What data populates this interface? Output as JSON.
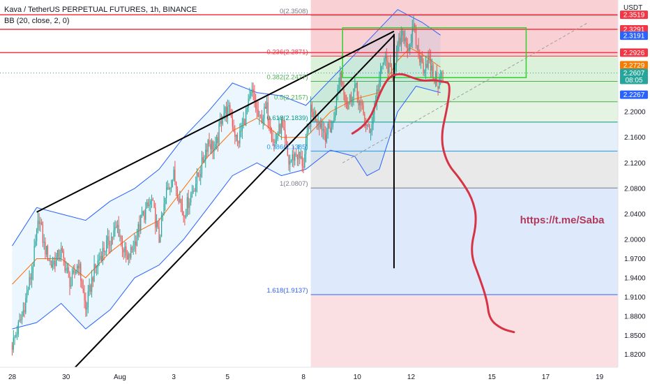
{
  "header": {
    "symbol_line": "Kava / TetherUS PERPETUAL FUTURES, 1h, BINANCE",
    "indicator_line": "BB (20, close, 2, 0)",
    "currency": "USDT"
  },
  "chart_data": {
    "type": "candlestick",
    "symbol": "Kava / TetherUS PERPETUAL FUTURES",
    "interval": "1h",
    "exchange": "BINANCE",
    "indicator": "BB (20, close, 2, 0)",
    "ylim": [
      1.8,
      2.375
    ],
    "y_ticks": [
      1.82,
      1.85,
      1.88,
      1.91,
      1.94,
      1.97,
      2.0,
      2.04,
      2.08,
      2.12,
      2.16,
      2.2
    ],
    "y_tick_labels": [
      "1.8200",
      "1.8500",
      "1.8800",
      "1.9100",
      "1.9400",
      "1.9700",
      "2.0000",
      "2.0400",
      "2.0800",
      "2.1200",
      "2.1600",
      "2.2000"
    ],
    "x_tick_labels": [
      "28",
      "30",
      "Aug",
      "3",
      "5",
      "8",
      "10",
      "12",
      "15",
      "17",
      "19"
    ],
    "x_ticks_bar": [
      0,
      44,
      88,
      132,
      176,
      238,
      282,
      326,
      392,
      436,
      480
    ],
    "bar_range": [
      -10,
      495
    ],
    "price_path": [
      [
        0,
        1.835
      ],
      [
        8,
        1.88
      ],
      [
        16,
        1.95
      ],
      [
        22,
        2.035
      ],
      [
        26,
        1.99
      ],
      [
        32,
        1.96
      ],
      [
        40,
        1.98
      ],
      [
        48,
        1.93
      ],
      [
        54,
        1.965
      ],
      [
        60,
        1.89
      ],
      [
        66,
        1.945
      ],
      [
        72,
        1.975
      ],
      [
        80,
        2.0
      ],
      [
        86,
        2.02
      ],
      [
        94,
        1.965
      ],
      [
        100,
        1.995
      ],
      [
        106,
        2.035
      ],
      [
        114,
        2.06
      ],
      [
        120,
        2.0
      ],
      [
        126,
        2.075
      ],
      [
        132,
        2.1
      ],
      [
        140,
        2.04
      ],
      [
        148,
        2.08
      ],
      [
        154,
        2.11
      ],
      [
        160,
        2.155
      ],
      [
        166,
        2.14
      ],
      [
        172,
        2.2
      ],
      [
        178,
        2.2
      ],
      [
        184,
        2.15
      ],
      [
        190,
        2.19
      ],
      [
        196,
        2.23
      ],
      [
        202,
        2.185
      ],
      [
        208,
        2.205
      ],
      [
        214,
        2.15
      ],
      [
        220,
        2.18
      ],
      [
        226,
        2.12
      ],
      [
        232,
        2.135
      ],
      [
        238,
        2.118
      ],
      [
        244,
        2.2
      ],
      [
        250,
        2.19
      ],
      [
        256,
        2.165
      ],
      [
        262,
        2.18
      ],
      [
        268,
        2.26
      ],
      [
        274,
        2.21
      ],
      [
        280,
        2.24
      ],
      [
        286,
        2.2
      ],
      [
        292,
        2.165
      ],
      [
        298,
        2.23
      ],
      [
        304,
        2.285
      ],
      [
        310,
        2.255
      ],
      [
        316,
        2.305
      ],
      [
        320,
        2.32
      ],
      [
        324,
        2.3
      ],
      [
        328,
        2.33
      ],
      [
        332,
        2.29
      ],
      [
        336,
        2.27
      ],
      [
        340,
        2.282
      ],
      [
        344,
        2.256
      ],
      [
        348,
        2.245
      ],
      [
        352,
        2.26
      ]
    ],
    "bb_upper": [
      [
        0,
        1.99
      ],
      [
        20,
        2.05
      ],
      [
        40,
        2.04
      ],
      [
        60,
        2.03
      ],
      [
        80,
        2.06
      ],
      [
        100,
        2.08
      ],
      [
        120,
        2.11
      ],
      [
        140,
        2.16
      ],
      [
        160,
        2.2
      ],
      [
        180,
        2.245
      ],
      [
        200,
        2.23
      ],
      [
        220,
        2.225
      ],
      [
        240,
        2.21
      ],
      [
        260,
        2.25
      ],
      [
        280,
        2.29
      ],
      [
        300,
        2.33
      ],
      [
        315,
        2.36
      ],
      [
        325,
        2.35
      ],
      [
        335,
        2.34
      ],
      [
        350,
        2.32
      ]
    ],
    "bb_basis": [
      [
        0,
        1.93
      ],
      [
        20,
        1.97
      ],
      [
        40,
        1.97
      ],
      [
        60,
        1.94
      ],
      [
        80,
        1.98
      ],
      [
        100,
        2.01
      ],
      [
        120,
        2.03
      ],
      [
        140,
        2.08
      ],
      [
        160,
        2.13
      ],
      [
        180,
        2.17
      ],
      [
        200,
        2.19
      ],
      [
        220,
        2.16
      ],
      [
        240,
        2.16
      ],
      [
        260,
        2.2
      ],
      [
        280,
        2.22
      ],
      [
        300,
        2.23
      ],
      [
        315,
        2.28
      ],
      [
        325,
        2.3
      ],
      [
        335,
        2.29
      ],
      [
        350,
        2.27
      ]
    ],
    "bb_lower": [
      [
        0,
        1.86
      ],
      [
        20,
        1.87
      ],
      [
        40,
        1.9
      ],
      [
        60,
        1.86
      ],
      [
        80,
        1.89
      ],
      [
        100,
        1.94
      ],
      [
        120,
        1.96
      ],
      [
        140,
        2.0
      ],
      [
        160,
        2.05
      ],
      [
        180,
        2.1
      ],
      [
        200,
        2.12
      ],
      [
        220,
        2.1
      ],
      [
        240,
        2.11
      ],
      [
        260,
        2.14
      ],
      [
        280,
        2.13
      ],
      [
        290,
        2.1
      ],
      [
        300,
        2.11
      ],
      [
        315,
        2.2
      ],
      [
        330,
        2.24
      ],
      [
        350,
        2.23
      ]
    ],
    "fib_levels": [
      {
        "ratio": "0",
        "value": 2.3508,
        "label": "0(2.3508)"
      },
      {
        "ratio": "0.236",
        "value": 2.2871,
        "label": "0.236(2.2871)"
      },
      {
        "ratio": "0.382",
        "value": 2.2477,
        "label": "0.382(2.2477)"
      },
      {
        "ratio": "0.5",
        "value": 2.2157,
        "label": "0.5(2.2157)"
      },
      {
        "ratio": "0.618",
        "value": 2.1839,
        "label": "0.618(2.1839)"
      },
      {
        "ratio": "0.786",
        "value": 2.1385,
        "label": "0.786(2.1385)"
      },
      {
        "ratio": "1",
        "value": 2.0807,
        "label": "1(2.0807)"
      },
      {
        "ratio": "1.618",
        "value": 1.9137,
        "label": "1.618(1.9137)"
      }
    ],
    "fib_start_bar": 244,
    "fib_zone_colors": [
      "#f7c2c5",
      "#f7c2c5",
      "#cfeccc",
      "#cfeccc",
      "#dcefd9",
      "#dceaf7",
      "#e1e1e1",
      "#d4e1fb",
      "#f9d6d9"
    ],
    "horizontal_lines": [
      2.3519,
      2.3291,
      2.2926
    ],
    "price_labels": [
      {
        "text": "2.3519",
        "value": 2.3519,
        "color": "#f23645"
      },
      {
        "text": "2.3291",
        "value": 2.3291,
        "color": "#f23645"
      },
      {
        "text": "2.3191",
        "value": 2.3191,
        "color": "#2962ff"
      },
      {
        "text": "2.2926",
        "value": 2.2926,
        "color": "#f23645"
      },
      {
        "text": "2.2729",
        "value": 2.2729,
        "color": "#f57c00"
      },
      {
        "text": "2.2607",
        "value": 2.2607,
        "color": "#26a69a",
        "sub": "08:05"
      },
      {
        "text": "2.2267",
        "value": 2.2267,
        "color": "#2962ff"
      }
    ],
    "current_price": 2.2607,
    "rectangle": {
      "bar_from": 270,
      "bar_to": 420,
      "top": 2.3315,
      "bottom": 2.2535
    },
    "wedge_upper": [
      [
        20,
        2.043
      ],
      [
        312,
        2.326
      ]
    ],
    "wedge_lower": [
      [
        50,
        1.797
      ],
      [
        312,
        2.32
      ]
    ],
    "trendline_dashed": [
      [
        270,
        2.12
      ],
      [
        470,
        2.339
      ]
    ],
    "vertical_line": {
      "bar": 312,
      "from": 2.322,
      "to": 1.955
    },
    "projection_path": [
      [
        278,
        2.166
      ],
      [
        286,
        2.175
      ],
      [
        294,
        2.195
      ],
      [
        300,
        2.228
      ],
      [
        308,
        2.256
      ],
      [
        318,
        2.26
      ],
      [
        326,
        2.254
      ],
      [
        336,
        2.248
      ],
      [
        344,
        2.25
      ],
      [
        352,
        2.247
      ],
      [
        358,
        2.245
      ],
      [
        356,
        2.21
      ],
      [
        350,
        2.16
      ],
      [
        355,
        2.12
      ],
      [
        366,
        2.095
      ],
      [
        376,
        2.065
      ],
      [
        380,
        2.03
      ],
      [
        374,
        1.98
      ],
      [
        382,
        1.94
      ],
      [
        388,
        1.905
      ],
      [
        390,
        1.875
      ],
      [
        400,
        1.86
      ],
      [
        410,
        1.855
      ]
    ],
    "watermark": "https://t.me/Saba",
    "colors": {
      "up": "#26a69a",
      "down": "#ef5350",
      "bb_band": "#2962ff",
      "bb_basis": "#ff6d00",
      "projection": "#d63344",
      "line_red": "#f23645"
    }
  }
}
